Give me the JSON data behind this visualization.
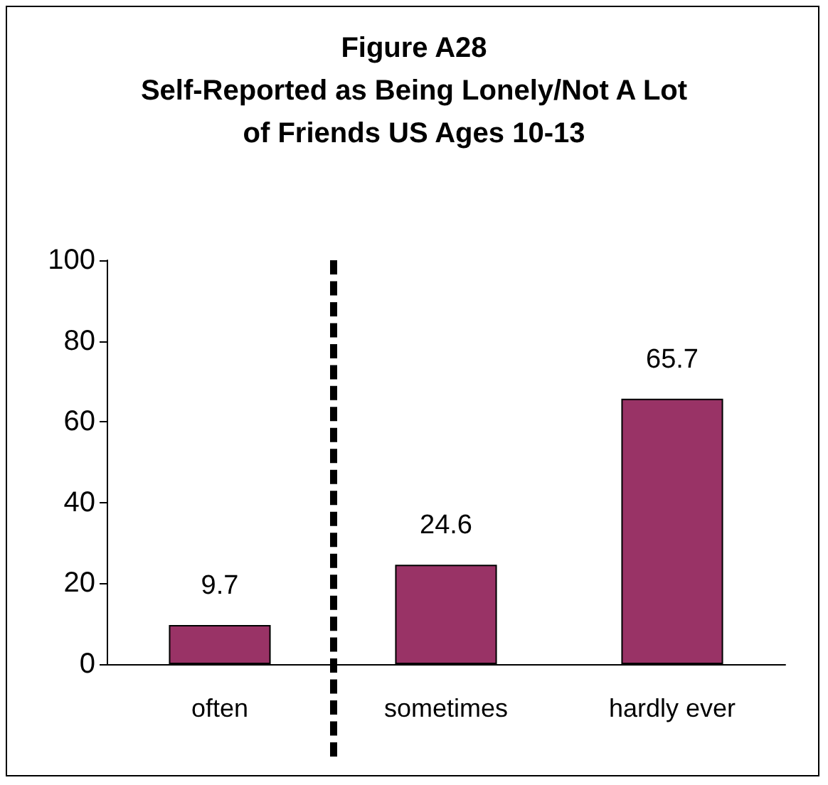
{
  "chart_data": {
    "type": "bar",
    "title": "Figure A28\nSelf-Reported as Being Lonely/Not A Lot\nof Friends US Ages 10-13",
    "categories": [
      "often",
      "sometimes",
      "hardly ever"
    ],
    "values": [
      9.7,
      24.6,
      65.7
    ],
    "color": "#993366",
    "ylim": [
      0,
      100
    ],
    "yticks": [
      0,
      20,
      40,
      60,
      80,
      100
    ],
    "data_labels": true
  }
}
